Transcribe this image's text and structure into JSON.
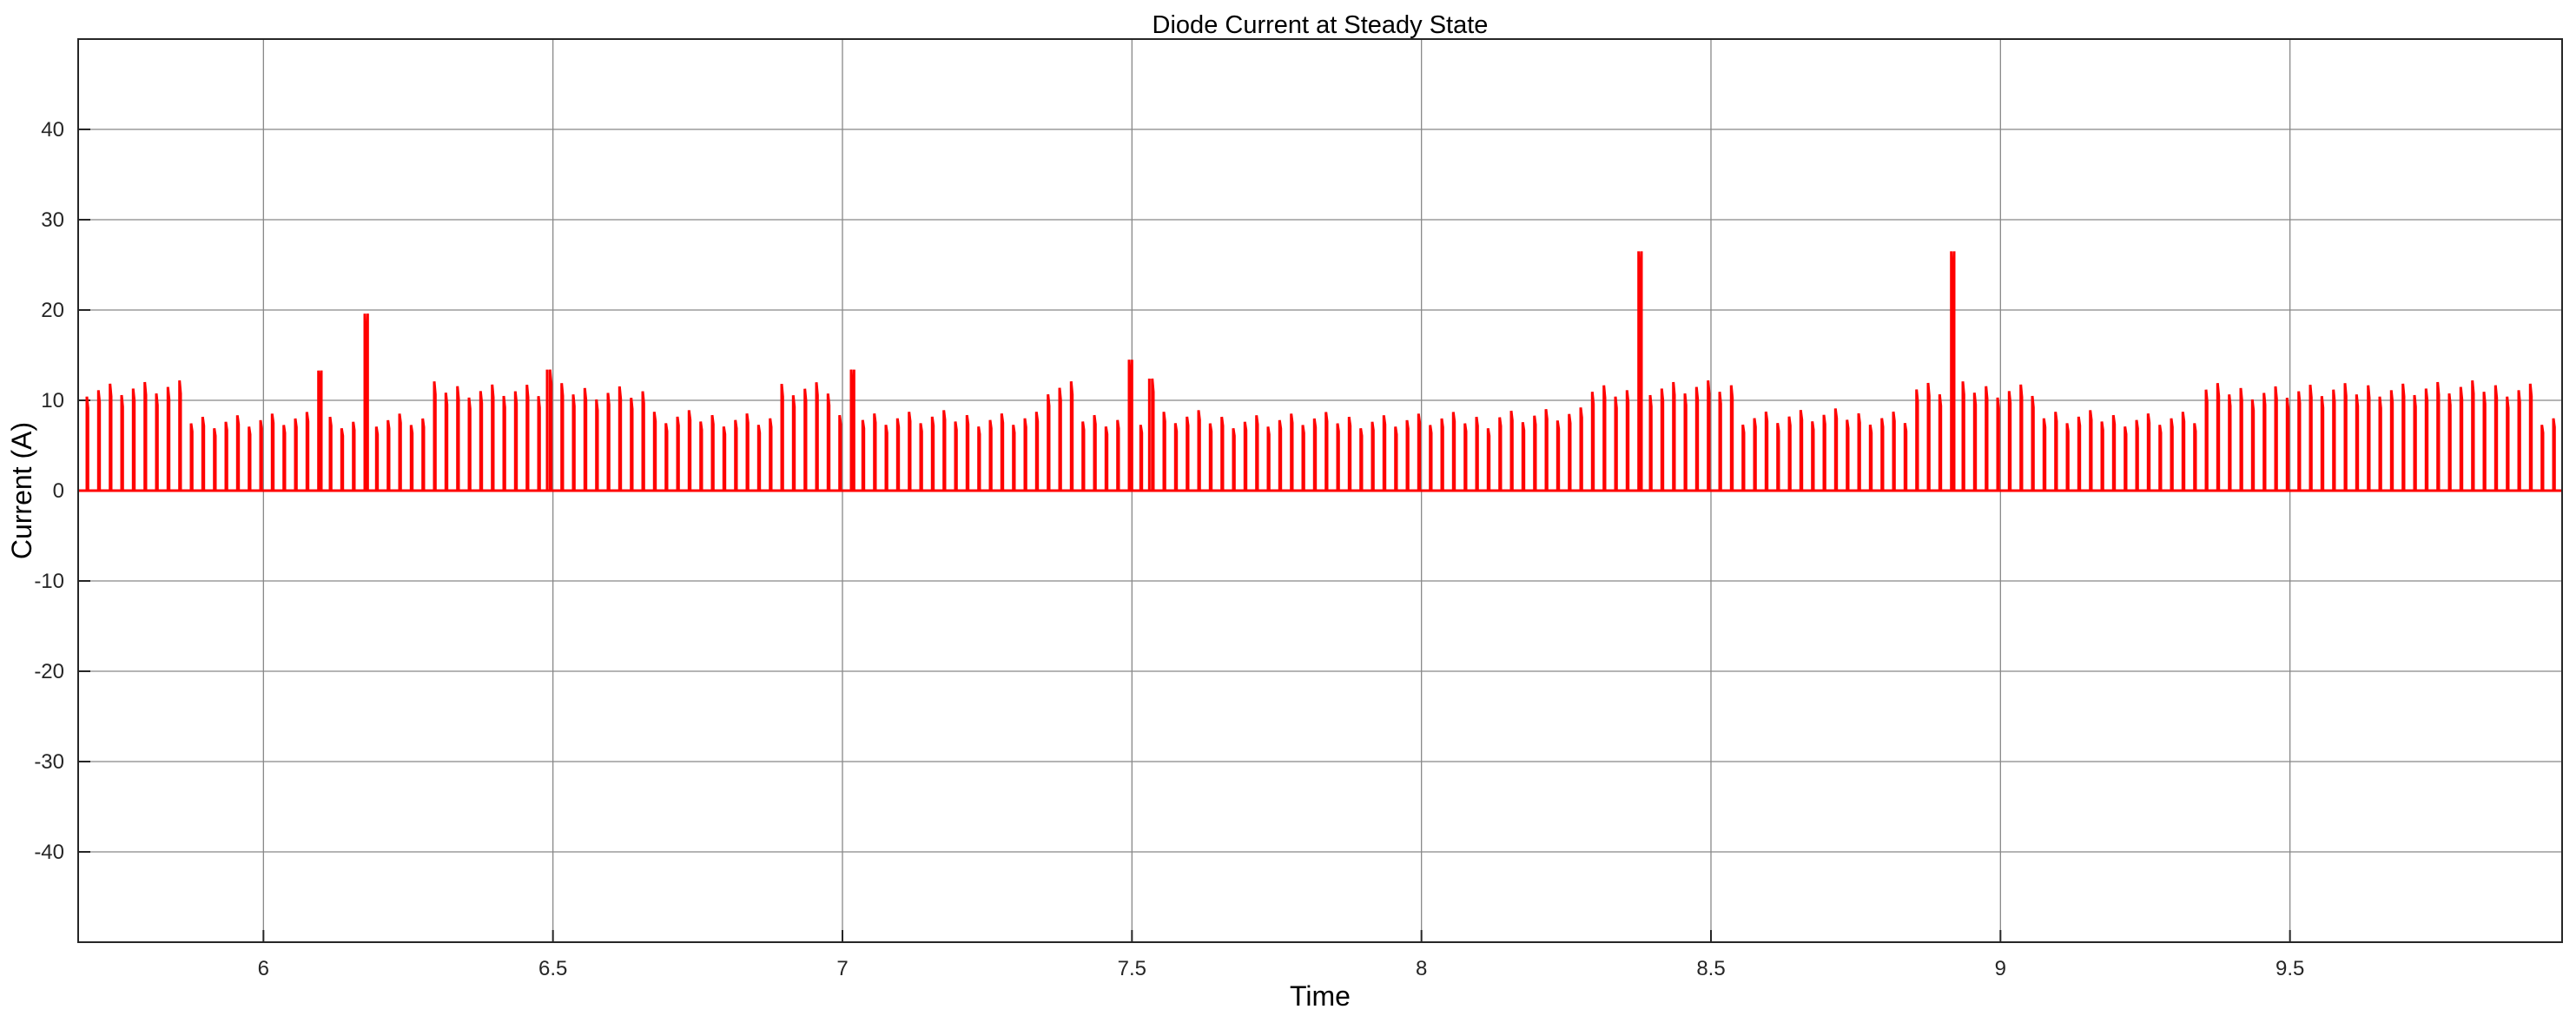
{
  "chart_data": {
    "type": "line",
    "title": "Diode Current at Steady State",
    "xlabel": "Time",
    "ylabel": "Current (A)",
    "xlim": [
      5.68,
      9.97
    ],
    "ylim": [
      -50,
      50
    ],
    "xticks": [
      6,
      6.5,
      7,
      7.5,
      8,
      8.5,
      9,
      9.5
    ],
    "yticks": [
      -40,
      -30,
      -20,
      -10,
      0,
      10,
      20,
      30,
      40
    ],
    "xtick_labels": [
      "6",
      "6.5",
      "7",
      "7.5",
      "8",
      "8.5",
      "9",
      "9.5"
    ],
    "ytick_labels": [
      "-40",
      "-30",
      "-20",
      "-10",
      "0",
      "10",
      "20",
      "30",
      "40"
    ],
    "grid": true,
    "legend": "none",
    "color": "#ff0000",
    "pulse_period": 0.02,
    "pulse_start": 5.695,
    "baseline": 0,
    "series": [
      {
        "segments": [
          {
            "x": [
              5.68,
              5.86
            ],
            "peak": 11.3
          },
          {
            "x": [
              5.86,
              6.28
            ],
            "peak": 7.8
          },
          {
            "x": [
              6.28,
              6.43
            ],
            "peak": 11.2
          },
          {
            "x": [
              6.43,
              6.66
            ],
            "peak": 11.0
          },
          {
            "x": [
              6.66,
              6.88
            ],
            "peak": 8.0
          },
          {
            "x": [
              6.88,
              6.99
            ],
            "peak": 11.1
          },
          {
            "x": [
              6.99,
              7.34
            ],
            "peak": 8.0
          },
          {
            "x": [
              7.34,
              7.41
            ],
            "peak": 11.2
          },
          {
            "x": [
              7.41,
              7.62
            ],
            "peak": 8.0
          },
          {
            "x": [
              7.62,
              8.12
            ],
            "peak": 7.8
          },
          {
            "x": [
              8.12,
              8.28
            ],
            "peak": 8.3
          },
          {
            "x": [
              8.28,
              8.54
            ],
            "peak": 11.3
          },
          {
            "x": [
              8.54,
              8.85
            ],
            "peak": 8.2
          },
          {
            "x": [
              8.85,
              9.07
            ],
            "peak": 11.2
          },
          {
            "x": [
              9.07,
              9.35
            ],
            "peak": 8.0
          },
          {
            "x": [
              9.35,
              9.63
            ],
            "peak": 11.0
          },
          {
            "x": [
              9.63,
              9.92
            ],
            "peak": 11.3
          },
          {
            "x": [
              9.92,
              9.97
            ],
            "peak": 8.0
          }
        ],
        "spikes": [
          {
            "x": 6.1,
            "y": 13.3
          },
          {
            "x": 6.18,
            "y": 19.6
          },
          {
            "x": 6.49,
            "y": 13.4
          },
          {
            "x": 7.02,
            "y": 13.4
          },
          {
            "x": 7.5,
            "y": 14.5
          },
          {
            "x": 7.53,
            "y": 12.4
          },
          {
            "x": 8.38,
            "y": 26.5
          },
          {
            "x": 8.92,
            "y": 26.5
          }
        ]
      }
    ]
  }
}
